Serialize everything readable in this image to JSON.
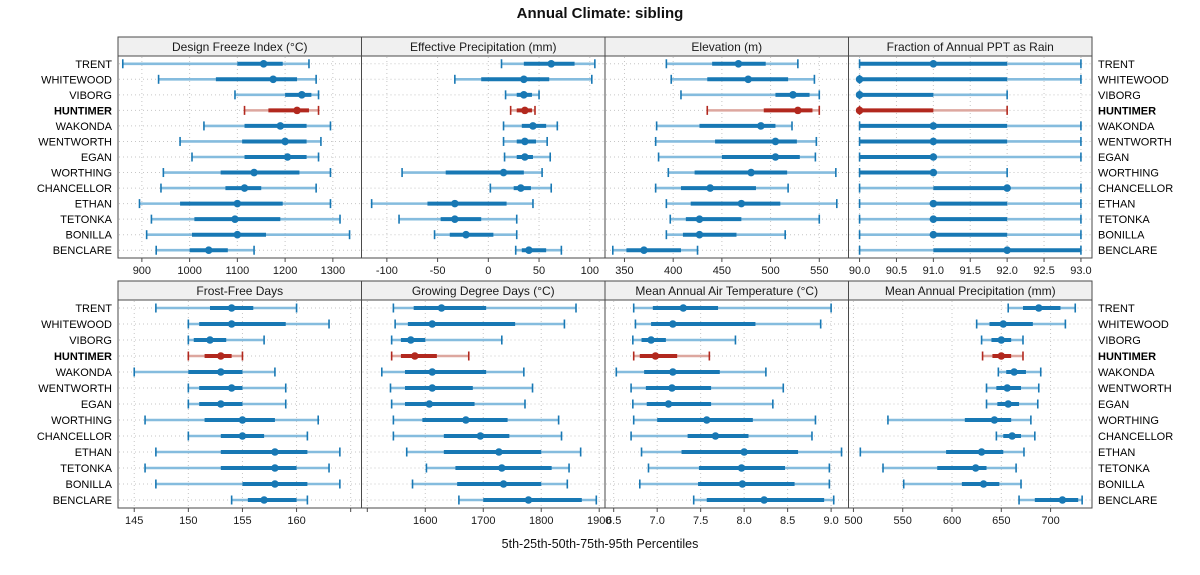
{
  "chart_data": {
    "type": "percentile-trellis",
    "title": "Annual Climate: sibling",
    "footer": "5th-25th-50th-75th-95th Percentiles",
    "percentile_labels": [
      "5th",
      "25th",
      "50th",
      "75th",
      "95th"
    ],
    "stations": [
      "TRENT",
      "WHITEWOOD",
      "VIBORG",
      "HUNTIMER",
      "WAKONDA",
      "WENTWORTH",
      "EGAN",
      "WORTHING",
      "CHANCELLOR",
      "ETHAN",
      "TETONKA",
      "BONILLA",
      "BENCLARE"
    ],
    "highlighted_station": "HUNTIMER",
    "colors": {
      "blue": "#1878b4",
      "blue_light": "#85bcde",
      "red": "#b2281e",
      "red_light": "#dda79f",
      "grid": "#c6c6c6",
      "border": "#4a4a4a",
      "header_bg": "#f0f0f0",
      "text": "#1a1a1a"
    },
    "layout": {
      "grid": "2x4",
      "legend": "none",
      "gridlines": "dotted"
    },
    "panels": [
      {
        "title": "Design Freeze Index (°C)",
        "xlim": [
          850,
          1360
        ],
        "ticks": [
          {
            "v": 900,
            "l": "900"
          },
          {
            "v": 1000,
            "l": "1000"
          },
          {
            "v": 1100,
            "l": "1100"
          },
          {
            "v": 1200,
            "l": "1200"
          },
          {
            "v": 1300,
            "l": "1300"
          }
        ],
        "data": [
          [
            860,
            1100,
            1155,
            1195,
            1250
          ],
          [
            935,
            1055,
            1175,
            1225,
            1265
          ],
          [
            1095,
            1200,
            1235,
            1255,
            1270
          ],
          [
            1115,
            1165,
            1225,
            1250,
            1270
          ],
          [
            1030,
            1115,
            1190,
            1245,
            1295
          ],
          [
            980,
            1110,
            1200,
            1245,
            1275
          ],
          [
            1005,
            1115,
            1205,
            1245,
            1270
          ],
          [
            945,
            1065,
            1135,
            1230,
            1295
          ],
          [
            940,
            1075,
            1115,
            1150,
            1265
          ],
          [
            895,
            980,
            1100,
            1195,
            1295
          ],
          [
            920,
            1010,
            1095,
            1190,
            1315
          ],
          [
            910,
            1005,
            1100,
            1160,
            1335
          ],
          [
            930,
            1000,
            1040,
            1080,
            1135
          ]
        ]
      },
      {
        "title": "Effective Precipitation (mm)",
        "xlim": [
          -125,
          115
        ],
        "ticks": [
          {
            "v": -100,
            "l": "-100"
          },
          {
            "v": -50,
            "l": "-50"
          },
          {
            "v": 0,
            "l": "0"
          },
          {
            "v": 50,
            "l": "50"
          },
          {
            "v": 100,
            "l": "100"
          }
        ],
        "data": [
          [
            13,
            35,
            62,
            85,
            105
          ],
          [
            -33,
            -7,
            35,
            60,
            102
          ],
          [
            17,
            28,
            35,
            43,
            50
          ],
          [
            22,
            28,
            36,
            43,
            46
          ],
          [
            15,
            33,
            44,
            57,
            68
          ],
          [
            15,
            28,
            36,
            47,
            58
          ],
          [
            16,
            28,
            36,
            44,
            61
          ],
          [
            -85,
            -42,
            15,
            35,
            53
          ],
          [
            2,
            25,
            32,
            42,
            62
          ],
          [
            -115,
            -60,
            -33,
            18,
            44
          ],
          [
            -88,
            -47,
            -33,
            -7,
            28
          ],
          [
            -53,
            -38,
            -22,
            5,
            28
          ],
          [
            27,
            33,
            40,
            57,
            72
          ]
        ]
      },
      {
        "title": "Elevation (m)",
        "xlim": [
          330,
          580
        ],
        "ticks": [
          {
            "v": 350,
            "l": "350"
          },
          {
            "v": 400,
            "l": "400"
          },
          {
            "v": 450,
            "l": "450"
          },
          {
            "v": 500,
            "l": "500"
          },
          {
            "v": 550,
            "l": "550"
          }
        ],
        "data": [
          [
            393,
            440,
            467,
            495,
            528
          ],
          [
            398,
            435,
            477,
            518,
            545
          ],
          [
            408,
            505,
            523,
            540,
            550
          ],
          [
            435,
            493,
            528,
            543,
            550
          ],
          [
            383,
            427,
            490,
            505,
            522
          ],
          [
            382,
            443,
            505,
            527,
            547
          ],
          [
            385,
            450,
            505,
            530,
            546
          ],
          [
            395,
            422,
            480,
            517,
            567
          ],
          [
            382,
            408,
            438,
            485,
            518
          ],
          [
            393,
            418,
            470,
            510,
            568
          ],
          [
            397,
            413,
            427,
            470,
            550
          ],
          [
            393,
            410,
            427,
            465,
            515
          ],
          [
            338,
            352,
            370,
            408,
            425
          ]
        ]
      },
      {
        "title": "Fraction of Annual PPT as Rain",
        "xlim": [
          89.85,
          93.15
        ],
        "ticks": [
          {
            "v": 90,
            "l": "90.0"
          },
          {
            "v": 90.5,
            "l": "90.5"
          },
          {
            "v": 91,
            "l": "91.0"
          },
          {
            "v": 91.5,
            "l": "91.5"
          },
          {
            "v": 92,
            "l": "92.0"
          },
          {
            "v": 92.5,
            "l": "92.5"
          },
          {
            "v": 93,
            "l": "93.0"
          }
        ],
        "data": [
          [
            90,
            90,
            91,
            92,
            93
          ],
          [
            90,
            90,
            90,
            92,
            93
          ],
          [
            90,
            90,
            90,
            91,
            92
          ],
          [
            90,
            90,
            90,
            91,
            92
          ],
          [
            90,
            90,
            91,
            92,
            93
          ],
          [
            90,
            90,
            91,
            92,
            93
          ],
          [
            90,
            90,
            91,
            91,
            93
          ],
          [
            90,
            90,
            91,
            91,
            92
          ],
          [
            90,
            91,
            92,
            92,
            93
          ],
          [
            90,
            91,
            91,
            92,
            93
          ],
          [
            90,
            91,
            91,
            92,
            93
          ],
          [
            90,
            91,
            91,
            92,
            93
          ],
          [
            90,
            91,
            92,
            93,
            93
          ]
        ]
      },
      {
        "title": "Frost-Free Days",
        "xlim": [
          143.5,
          166
        ],
        "ticks": [
          {
            "v": 145,
            "l": "145"
          },
          {
            "v": 150,
            "l": "150"
          },
          {
            "v": 155,
            "l": "155"
          },
          {
            "v": 160,
            "l": "160"
          },
          {
            "v": 165,
            "l": ""
          }
        ],
        "data": [
          [
            147,
            152,
            154,
            156,
            160
          ],
          [
            150,
            151,
            154,
            159,
            163
          ],
          [
            150,
            150.5,
            152,
            153.5,
            157
          ],
          [
            150,
            151.5,
            153,
            154,
            155
          ],
          [
            145,
            150,
            153,
            155,
            158
          ],
          [
            150,
            151,
            154,
            155,
            159
          ],
          [
            150,
            151,
            153,
            155,
            159
          ],
          [
            146,
            151.5,
            155,
            158,
            162
          ],
          [
            150,
            153,
            155,
            157,
            161
          ],
          [
            147,
            153,
            158,
            161,
            164
          ],
          [
            146,
            153,
            158,
            160,
            163
          ],
          [
            147,
            155,
            158,
            161,
            164
          ],
          [
            154,
            155.5,
            157,
            160,
            161
          ]
        ]
      },
      {
        "title": "Growing Degree Days (°C)",
        "xlim": [
          1490,
          1910
        ],
        "ticks": [
          {
            "v": 1500,
            "l": ""
          },
          {
            "v": 1600,
            "l": "1600"
          },
          {
            "v": 1700,
            "l": "1700"
          },
          {
            "v": 1800,
            "l": "1800"
          },
          {
            "v": 1900,
            "l": "1900"
          }
        ],
        "data": [
          [
            1545,
            1580,
            1628,
            1705,
            1860
          ],
          [
            1548,
            1570,
            1612,
            1755,
            1840
          ],
          [
            1542,
            1558,
            1575,
            1600,
            1732
          ],
          [
            1542,
            1558,
            1582,
            1620,
            1675
          ],
          [
            1525,
            1565,
            1612,
            1705,
            1770
          ],
          [
            1540,
            1565,
            1612,
            1682,
            1785
          ],
          [
            1542,
            1565,
            1607,
            1685,
            1772
          ],
          [
            1545,
            1595,
            1670,
            1742,
            1830
          ],
          [
            1545,
            1632,
            1695,
            1745,
            1835
          ],
          [
            1568,
            1632,
            1727,
            1800,
            1868
          ],
          [
            1602,
            1652,
            1732,
            1818,
            1848
          ],
          [
            1578,
            1655,
            1735,
            1800,
            1845
          ],
          [
            1658,
            1700,
            1778,
            1870,
            1895
          ]
        ]
      },
      {
        "title": "Mean Annual Air Temperature (°C)",
        "xlim": [
          6.4,
          9.2
        ],
        "ticks": [
          {
            "v": 6.5,
            "l": "6.5"
          },
          {
            "v": 7,
            "l": "7.0"
          },
          {
            "v": 7.5,
            "l": "7.5"
          },
          {
            "v": 8,
            "l": "8.0"
          },
          {
            "v": 8.5,
            "l": "8.5"
          },
          {
            "v": 9,
            "l": "9.0"
          }
        ],
        "data": [
          [
            6.73,
            6.95,
            7.3,
            7.7,
            9.0
          ],
          [
            6.75,
            6.93,
            7.18,
            8.13,
            8.88
          ],
          [
            6.72,
            6.82,
            6.93,
            7.1,
            7.9
          ],
          [
            6.73,
            6.8,
            6.98,
            7.23,
            7.6
          ],
          [
            6.53,
            6.85,
            7.18,
            7.72,
            8.25
          ],
          [
            6.7,
            6.87,
            7.17,
            7.62,
            8.45
          ],
          [
            6.72,
            6.88,
            7.13,
            7.62,
            8.33
          ],
          [
            6.73,
            7.0,
            7.57,
            8.1,
            8.82
          ],
          [
            6.7,
            7.35,
            7.67,
            8.05,
            8.78
          ],
          [
            6.82,
            7.28,
            8.0,
            8.62,
            9.12
          ],
          [
            6.9,
            7.48,
            7.97,
            8.47,
            8.98
          ],
          [
            6.8,
            7.47,
            7.98,
            8.58,
            8.98
          ],
          [
            7.42,
            7.57,
            8.23,
            8.92,
            9.03
          ]
        ]
      },
      {
        "title": "Mean Annual Precipitation (mm)",
        "xlim": [
          495,
          742
        ],
        "ticks": [
          {
            "v": 500,
            "l": "500"
          },
          {
            "v": 550,
            "l": "550"
          },
          {
            "v": 600,
            "l": "600"
          },
          {
            "v": 650,
            "l": "650"
          },
          {
            "v": 700,
            "l": "700"
          }
        ],
        "data": [
          [
            657,
            672,
            688,
            710,
            725
          ],
          [
            625,
            638,
            652,
            682,
            715
          ],
          [
            630,
            640,
            650,
            660,
            672
          ],
          [
            631,
            641,
            650,
            660,
            672
          ],
          [
            647,
            655,
            663,
            675,
            690
          ],
          [
            635,
            645,
            656,
            670,
            688
          ],
          [
            635,
            646,
            657,
            668,
            687
          ],
          [
            535,
            613,
            643,
            660,
            680
          ],
          [
            645,
            652,
            661,
            670,
            684
          ],
          [
            507,
            594,
            630,
            652,
            673
          ],
          [
            530,
            585,
            624,
            635,
            665
          ],
          [
            551,
            610,
            632,
            648,
            670
          ],
          [
            668,
            684,
            712,
            728,
            732
          ]
        ]
      }
    ]
  }
}
